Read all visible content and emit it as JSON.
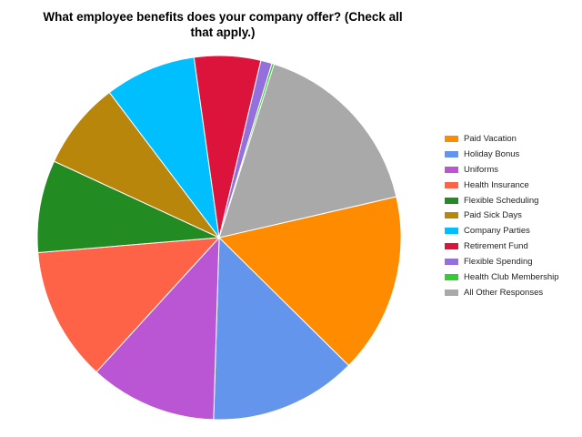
{
  "chart_data": {
    "type": "pie",
    "title": "What employee benefits does your company offer? (Check all that apply.)",
    "legend_position": "right",
    "slices": [
      {
        "label": "Paid Vacation",
        "value": 16.0,
        "color": "#FF8C00"
      },
      {
        "label": "Holiday Bonus",
        "value": 13.1,
        "color": "#6495ED"
      },
      {
        "label": "Uniforms",
        "value": 11.3,
        "color": "#BA55D3"
      },
      {
        "label": "Health Insurance",
        "value": 11.9,
        "color": "#FF6347"
      },
      {
        "label": "Flexible Scheduling",
        "value": 8.2,
        "color": "#228B22"
      },
      {
        "label": "Paid Sick Days",
        "value": 7.8,
        "color": "#B8860B"
      },
      {
        "label": "Company Parties",
        "value": 8.1,
        "color": "#00BFFF"
      },
      {
        "label": "Retirement Fund",
        "value": 5.9,
        "color": "#DC143C"
      },
      {
        "label": "Flexible Spending",
        "value": 1.0,
        "color": "#9370DB"
      },
      {
        "label": "Health Club Membership",
        "value": 0.2,
        "color": "#32CD32"
      },
      {
        "label": "All Other Responses",
        "value": 16.5,
        "color": "#A9A9A9"
      }
    ]
  }
}
